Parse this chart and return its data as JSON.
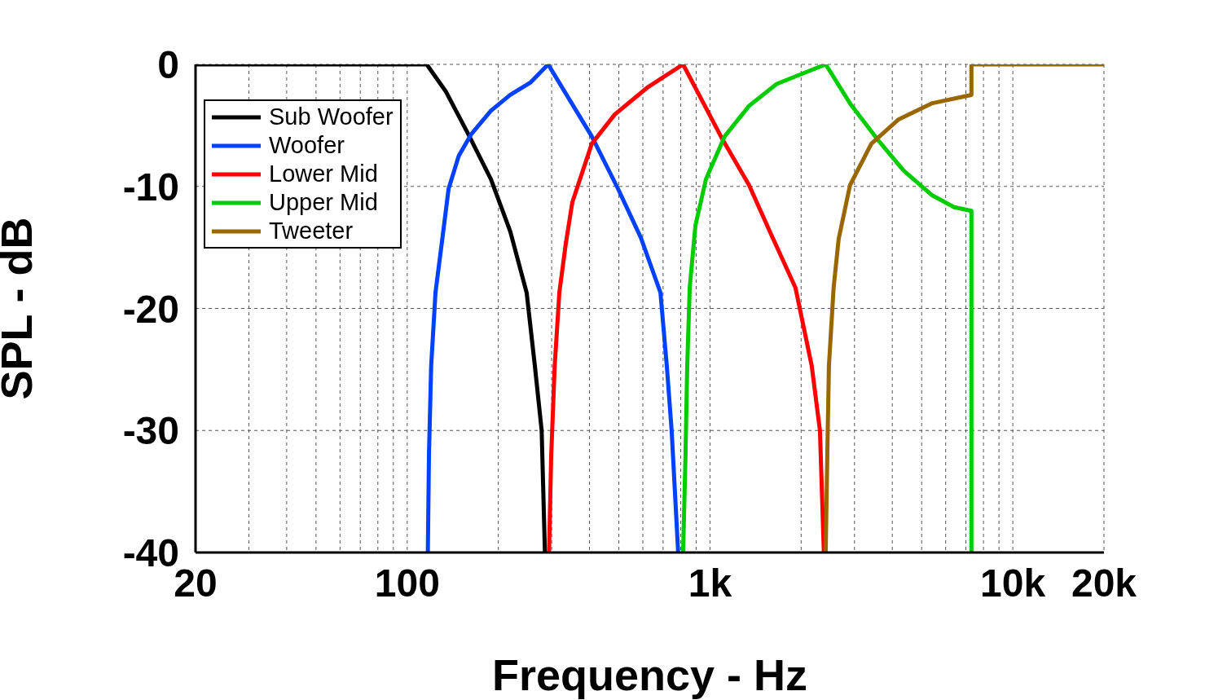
{
  "chart_data": {
    "type": "line",
    "xlabel": "Frequency - Hz",
    "ylabel": "SPL - dB",
    "log": "x",
    "xlim": [
      20,
      20000
    ],
    "xticks": [
      20,
      {
        "value": 30,
        "label": null
      },
      {
        "value": 40,
        "label": null
      },
      {
        "value": 50,
        "label": null
      },
      {
        "value": 60,
        "label": null
      },
      {
        "value": 70,
        "label": null
      },
      {
        "value": 80,
        "label": null
      },
      {
        "value": 90,
        "label": null
      },
      100,
      {
        "value": 200,
        "label": null
      },
      {
        "value": 300,
        "label": null
      },
      {
        "value": 400,
        "label": null
      },
      {
        "value": 500,
        "label": null
      },
      {
        "value": 600,
        "label": null
      },
      {
        "value": 700,
        "label": null
      },
      {
        "value": 800,
        "label": null
      },
      {
        "value": 900,
        "label": null
      },
      {
        "value": 1000,
        "label": "1k"
      },
      {
        "value": 2000,
        "label": null
      },
      {
        "value": 3000,
        "label": null
      },
      {
        "value": 4000,
        "label": null
      },
      {
        "value": 5000,
        "label": null
      },
      {
        "value": 6000,
        "label": null
      },
      {
        "value": 7000,
        "label": null
      },
      {
        "value": 8000,
        "label": null
      },
      {
        "value": 9000,
        "label": null
      },
      {
        "value": 10000,
        "label": "10k"
      },
      {
        "value": 20000,
        "label": "20k"
      }
    ],
    "ylim": [
      -40,
      0
    ],
    "yticks": [
      0,
      -10,
      -20,
      -30,
      -40
    ],
    "grid": true,
    "legend": "top left",
    "line_style": "solid",
    "marker": "none",
    "series": [
      {
        "name": "Sub Woofer",
        "color": "#000000",
        "x": [
          20,
          116,
          134,
          159,
          189,
          219,
          248,
          264,
          278,
          285
        ],
        "values": [
          0,
          0,
          -2.2,
          -5.7,
          -9.4,
          -13.7,
          -18.7,
          -24.7,
          -30,
          -40
        ]
      },
      {
        "name": "Woofer",
        "color": "#0040ff",
        "x": [
          117,
          118,
          120,
          124,
          130,
          137,
          148,
          163,
          189,
          219,
          255,
          292,
          407,
          497,
          591,
          686,
          720,
          747,
          785
        ],
        "values": [
          -40,
          -32,
          -24.7,
          -18.7,
          -14.7,
          -10.2,
          -7.5,
          -5.7,
          -3.8,
          -2.5,
          -1.5,
          0,
          -5.9,
          -10.2,
          -14.2,
          -18.7,
          -24.7,
          -30,
          -40
        ]
      },
      {
        "name": "Lower Mid",
        "color": "#ff0000",
        "x": [
          294,
          299,
          307,
          318,
          334,
          351,
          407,
          485,
          621,
          815,
          1097,
          1346,
          1590,
          1915,
          2167,
          2307,
          2377
        ],
        "values": [
          -40,
          -32,
          -24.7,
          -18.7,
          -14.7,
          -11.3,
          -6.5,
          -4.1,
          -1.9,
          0,
          -6.1,
          -9.9,
          -13.9,
          -18.3,
          -24.7,
          -30,
          -40
        ]
      },
      {
        "name": "Upper Mid",
        "color": "#00cc00",
        "x": [
          815,
          830,
          841,
          857,
          895,
          970,
          1118,
          1346,
          1660,
          2410,
          2900,
          3560,
          4360,
          5390,
          6400,
          7300,
          7300
        ],
        "values": [
          -40,
          -32,
          -24.7,
          -18.3,
          -13.2,
          -9.4,
          -5.9,
          -3.4,
          -1.6,
          0,
          -3.2,
          -6.1,
          -8.7,
          -10.7,
          -11.7,
          -12,
          -40
        ]
      },
      {
        "name": "Tweeter",
        "color": "#996600",
        "x": [
          2410,
          2440,
          2470,
          2560,
          2660,
          2900,
          3410,
          4200,
          5390,
          7300,
          7300,
          20000
        ],
        "values": [
          -40,
          -32,
          -24.7,
          -18.3,
          -14.3,
          -9.9,
          -6.5,
          -4.5,
          -3.2,
          -2.5,
          0,
          0
        ]
      }
    ]
  }
}
